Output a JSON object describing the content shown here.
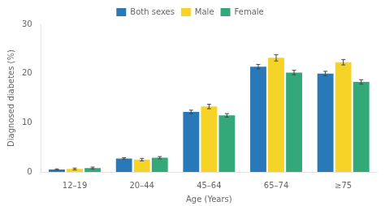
{
  "chart_data": {
    "type": "bar",
    "categories": [
      "12–19",
      "20–44",
      "45–64",
      "65–74",
      "≥75"
    ],
    "series": [
      {
        "name": "Both sexes",
        "color": "#2979b9",
        "values": [
          0.5,
          2.7,
          12.2,
          21.4,
          20.0
        ],
        "errors": [
          0.12,
          0.18,
          0.35,
          0.45,
          0.45
        ]
      },
      {
        "name": "Male",
        "color": "#F5D327",
        "values": [
          0.6,
          2.5,
          13.3,
          23.2,
          22.3
        ],
        "errors": [
          0.18,
          0.25,
          0.45,
          0.65,
          0.55
        ]
      },
      {
        "name": "Female",
        "color": "#33A97A",
        "values": [
          0.8,
          2.9,
          11.5,
          20.2,
          18.3
        ],
        "errors": [
          0.18,
          0.22,
          0.35,
          0.45,
          0.45
        ]
      }
    ],
    "xlabel": "Age (Years)",
    "ylabel": "Diagnosed diabetes (%)",
    "ylim": [
      0,
      30
    ],
    "yticks": [
      0,
      10,
      20,
      30
    ],
    "grid": false,
    "legend": "top"
  }
}
